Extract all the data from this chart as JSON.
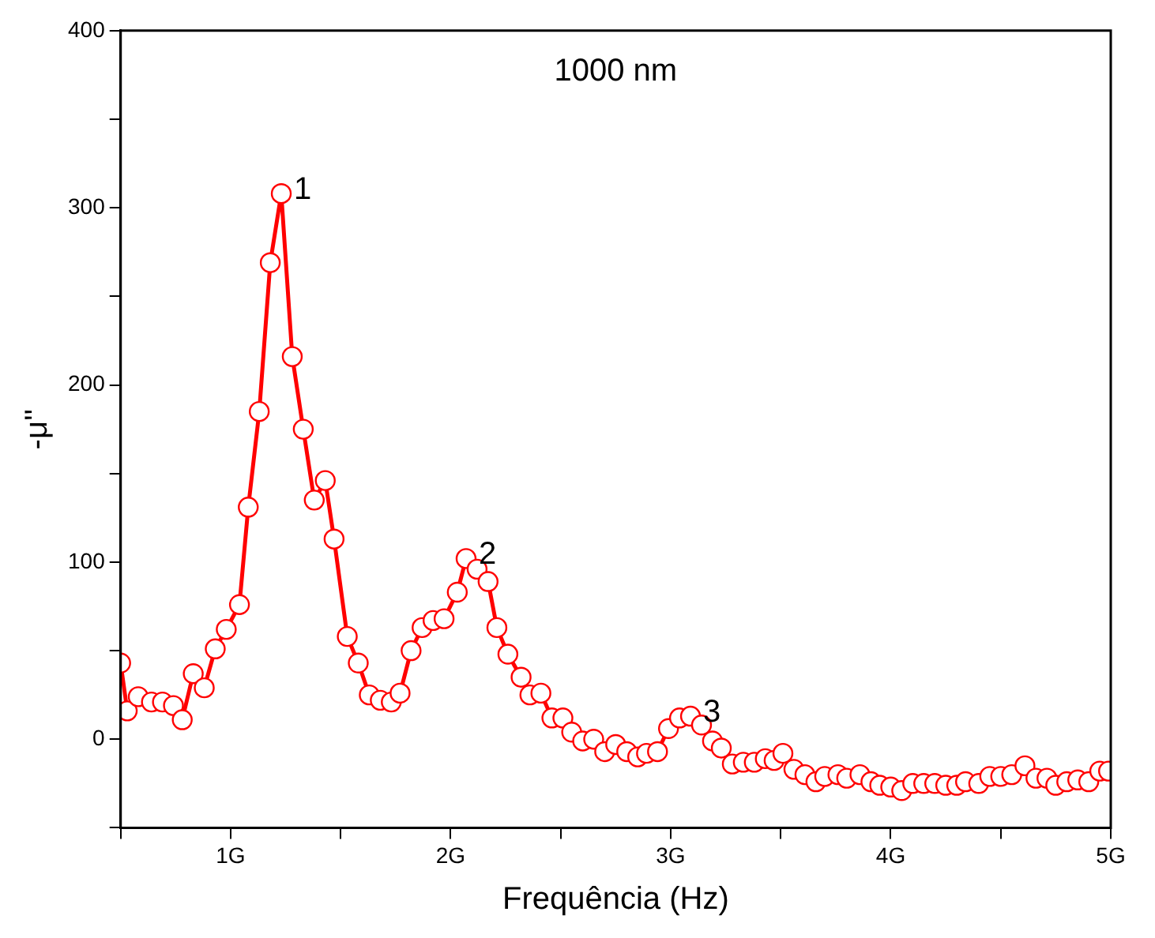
{
  "chart_data": {
    "type": "line",
    "title": "1000 nm",
    "xlabel": "Frequência (Hz)",
    "ylabel": "-μ''",
    "marker": "circle",
    "line_style": "solid",
    "grid": false,
    "legend": false,
    "xlim": [
      0.5,
      5
    ],
    "xticks": [
      {
        "value": 0.5,
        "label": null
      },
      {
        "value": 1,
        "label": "1G"
      },
      {
        "value": 1.5,
        "label": null
      },
      {
        "value": 2,
        "label": "2G"
      },
      {
        "value": 2.5,
        "label": null
      },
      {
        "value": 3,
        "label": "3G"
      },
      {
        "value": 3.5,
        "label": null
      },
      {
        "value": 4,
        "label": "4G"
      },
      {
        "value": 4.5,
        "label": null
      },
      {
        "value": 5,
        "label": "5G"
      }
    ],
    "ylim": [
      -50,
      400
    ],
    "yticks": [
      {
        "value": -50,
        "label": null
      },
      0,
      {
        "value": 50,
        "label": null
      },
      100,
      {
        "value": 150,
        "label": null
      },
      200,
      {
        "value": 250,
        "label": null
      },
      300,
      {
        "value": 350,
        "label": null
      },
      400
    ],
    "x": [
      0.5,
      0.53,
      0.58,
      0.64,
      0.69,
      0.74,
      0.78,
      0.83,
      0.88,
      0.93,
      0.98,
      1.04,
      1.08,
      1.13,
      1.18,
      1.23,
      1.28,
      1.33,
      1.38,
      1.43,
      1.47,
      1.53,
      1.58,
      1.63,
      1.68,
      1.73,
      1.77,
      1.82,
      1.87,
      1.92,
      1.97,
      2.03,
      2.07,
      2.12,
      2.17,
      2.21,
      2.26,
      2.32,
      2.36,
      2.41,
      2.46,
      2.51,
      2.55,
      2.6,
      2.65,
      2.7,
      2.75,
      2.8,
      2.85,
      2.89,
      2.94,
      2.99,
      3.04,
      3.09,
      3.14,
      3.19,
      3.23,
      3.28,
      3.33,
      3.38,
      3.43,
      3.47,
      3.51,
      3.56,
      3.61,
      3.66,
      3.7,
      3.76,
      3.8,
      3.86,
      3.91,
      3.95,
      4.0,
      4.05,
      4.1,
      4.15,
      4.2,
      4.25,
      4.3,
      4.34,
      4.4,
      4.45,
      4.5,
      4.55,
      4.61,
      4.66,
      4.71,
      4.75,
      4.8,
      4.85,
      4.9,
      4.95,
      4.99
    ],
    "series": [
      {
        "color": "#ff0000",
        "values": [
          43,
          16,
          24,
          21,
          21,
          19,
          11,
          37,
          29,
          51,
          62,
          76,
          131,
          185,
          269,
          308,
          216,
          175,
          135,
          146,
          113,
          58,
          43,
          25,
          22,
          21,
          26,
          50,
          63,
          67,
          68,
          83,
          102,
          96,
          89,
          63,
          48,
          35,
          25,
          26,
          12,
          12,
          4,
          -1,
          0,
          -7,
          -3,
          -7,
          -10,
          -8,
          -7,
          6,
          12,
          13,
          8,
          -1,
          -5,
          -14,
          -13,
          -13,
          -11,
          -12,
          -8,
          -17,
          -20,
          -24,
          -21,
          -20,
          -22,
          -20,
          -24,
          -26,
          -27,
          -29,
          -25,
          -25,
          -25,
          -26,
          -26,
          -24,
          -25,
          -21,
          -21,
          -20,
          -15,
          -22,
          -22,
          -26,
          -24,
          -23,
          -24,
          -18,
          -18
        ]
      }
    ],
    "annotations": [
      {
        "text": "1",
        "x": 1.23,
        "y": 308
      },
      {
        "text": "2",
        "x": 2.07,
        "y": 102
      },
      {
        "text": "3",
        "x": 3.09,
        "y": 13
      }
    ]
  }
}
